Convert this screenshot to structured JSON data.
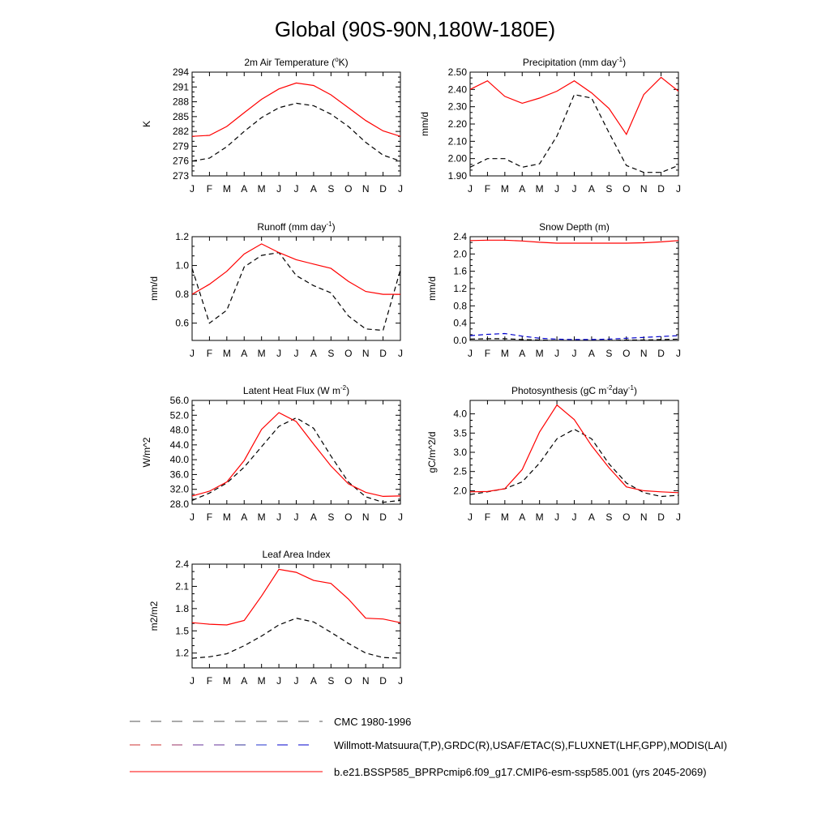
{
  "title": "Global (90S-90N,180W-180E)",
  "months": [
    "J",
    "F",
    "M",
    "A",
    "M",
    "J",
    "J",
    "A",
    "S",
    "O",
    "N",
    "D",
    "J"
  ],
  "colors": {
    "model": "#ff0000",
    "obs": "#000000",
    "obs_alt": "#0000cc"
  },
  "chart_data": [
    {
      "type": "line",
      "title": "2m Air Temperature (°K)",
      "title_parts": [
        "2m Air Temperature (",
        "o",
        "K)"
      ],
      "ylabel": "K",
      "ylim": [
        273,
        294
      ],
      "yticks": [
        "294",
        "291",
        "288",
        "285",
        "282",
        "279",
        "276",
        "273"
      ],
      "ytick_values": [
        294,
        291,
        288,
        285,
        282,
        279,
        276,
        273
      ],
      "series": [
        {
          "values": [
            281.0,
            281.2,
            283.0,
            285.8,
            288.5,
            290.6,
            291.8,
            291.3,
            289.4,
            286.8,
            284.2,
            282.1,
            281.0
          ]
        },
        {
          "values": [
            276.0,
            276.6,
            278.9,
            282.0,
            284.8,
            286.8,
            287.7,
            287.2,
            285.5,
            283.0,
            279.8,
            277.2,
            276.0
          ]
        }
      ]
    },
    {
      "type": "line",
      "title": "Precipitation (mm day-1)",
      "title_parts": [
        "Precipitation (mm day",
        "-1",
        ")"
      ],
      "ylabel": "mm/d",
      "ylim": [
        1.9,
        2.5
      ],
      "yticks": [
        "2.50",
        "2.40",
        "2.30",
        "2.20",
        "2.10",
        "2.00",
        "1.90"
      ],
      "ytick_values": [
        2.5,
        2.4,
        2.3,
        2.2,
        2.1,
        2.0,
        1.9
      ],
      "series": [
        {
          "values": [
            2.4,
            2.45,
            2.36,
            2.32,
            2.35,
            2.39,
            2.45,
            2.38,
            2.29,
            2.14,
            2.37,
            2.47,
            2.39
          ]
        },
        {
          "values": [
            1.95,
            2.0,
            2.0,
            1.95,
            1.97,
            2.13,
            2.37,
            2.35,
            2.15,
            1.96,
            1.92,
            1.92,
            1.96
          ]
        }
      ]
    },
    {
      "type": "line",
      "title": "Runoff (mm day-1)",
      "title_parts": [
        "Runoff (mm day",
        "-1",
        ")"
      ],
      "ylabel": "mm/d",
      "ylim": [
        0.48,
        1.2
      ],
      "yticks": [
        "1.2",
        "1.0",
        "0.8",
        "0.6"
      ],
      "ytick_values": [
        1.2,
        1.0,
        0.8,
        0.6
      ],
      "series": [
        {
          "values": [
            0.8,
            0.87,
            0.96,
            1.08,
            1.15,
            1.09,
            1.04,
            1.01,
            0.98,
            0.89,
            0.82,
            0.8,
            0.8
          ]
        },
        {
          "values": [
            0.98,
            0.6,
            0.69,
            0.99,
            1.07,
            1.09,
            0.93,
            0.86,
            0.81,
            0.65,
            0.56,
            0.55,
            0.97
          ]
        }
      ]
    },
    {
      "type": "line",
      "title": "Snow Depth (m)",
      "title_parts": [
        "Snow Depth (m)",
        "",
        ""
      ],
      "ylabel": "mm/d",
      "ylim": [
        0.0,
        2.4
      ],
      "yticks": [
        "2.4",
        "2.0",
        "1.6",
        "1.2",
        "0.8",
        "0.4",
        "0.0"
      ],
      "ytick_values": [
        2.4,
        2.0,
        1.6,
        1.2,
        0.8,
        0.4,
        0.0
      ],
      "series": [
        {
          "values": [
            2.31,
            2.32,
            2.32,
            2.3,
            2.27,
            2.25,
            2.25,
            2.25,
            2.25,
            2.25,
            2.26,
            2.28,
            2.31
          ]
        },
        {
          "values": [
            0.11,
            0.14,
            0.16,
            0.1,
            0.05,
            0.03,
            0.02,
            0.02,
            0.03,
            0.05,
            0.07,
            0.09,
            0.11
          ]
        },
        {
          "values": [
            0.03,
            0.04,
            0.04,
            0.02,
            0.01,
            0.0,
            0.0,
            0.0,
            0.0,
            0.01,
            0.01,
            0.02,
            0.03
          ]
        }
      ]
    },
    {
      "type": "line",
      "title": "Latent Heat Flux (W m-2)",
      "title_parts": [
        "Latent Heat Flux (W m",
        "-2",
        ")"
      ],
      "ylabel": "W/m^2",
      "ylim": [
        28.0,
        56.0
      ],
      "yticks": [
        "56.0",
        "52.0",
        "48.0",
        "44.0",
        "40.0",
        "36.0",
        "32.0",
        "28.0"
      ],
      "ytick_values": [
        56.0,
        52.0,
        48.0,
        44.0,
        40.0,
        36.0,
        32.0,
        28.0
      ],
      "series": [
        {
          "values": [
            30.2,
            31.5,
            34.0,
            39.8,
            48.2,
            52.7,
            50.3,
            44.2,
            38.3,
            33.5,
            31.2,
            30.1,
            30.2
          ]
        },
        {
          "values": [
            29.0,
            31.0,
            33.7,
            38.0,
            43.5,
            49.0,
            51.3,
            48.5,
            41.0,
            34.0,
            30.0,
            28.5,
            29.0
          ]
        }
      ]
    },
    {
      "type": "line",
      "title": "Photosynthesis (gC m-2day-1)",
      "title_parts": [
        "Photosynthesis (gC m",
        "-2",
        "day",
        "-1",
        ")"
      ],
      "ylabel": "gC/m^2/d",
      "ylim": [
        1.65,
        4.35
      ],
      "yticks": [
        "4.0",
        "3.5",
        "3.0",
        "2.5",
        "2.0"
      ],
      "ytick_values": [
        4.0,
        3.5,
        3.0,
        2.5,
        2.0
      ],
      "series": [
        {
          "values": [
            1.97,
            1.98,
            2.05,
            2.55,
            3.53,
            4.23,
            3.85,
            3.17,
            2.6,
            2.1,
            2.0,
            1.97,
            1.95
          ]
        },
        {
          "values": [
            1.9,
            1.97,
            2.05,
            2.23,
            2.72,
            3.35,
            3.6,
            3.35,
            2.7,
            2.2,
            1.95,
            1.85,
            1.88
          ]
        }
      ]
    },
    {
      "type": "line",
      "title": "Leaf Area Index",
      "title_parts": [
        "Leaf Area Index",
        "",
        ""
      ],
      "ylabel": "m2/m2",
      "ylim": [
        1.0,
        2.4
      ],
      "yticks": [
        "2.4",
        "2.1",
        "1.8",
        "1.5",
        "1.2"
      ],
      "ytick_values": [
        2.4,
        2.1,
        1.8,
        1.5,
        1.2
      ],
      "series": [
        {
          "values": [
            1.61,
            1.59,
            1.58,
            1.64,
            1.97,
            2.33,
            2.29,
            2.18,
            2.14,
            1.93,
            1.67,
            1.66,
            1.61
          ]
        },
        {
          "values": [
            1.13,
            1.15,
            1.19,
            1.3,
            1.43,
            1.58,
            1.67,
            1.62,
            1.48,
            1.33,
            1.2,
            1.14,
            1.13
          ]
        }
      ]
    }
  ],
  "legend": [
    {
      "label": "CMC 1980-1996"
    },
    {
      "label": "Willmott-Matsuura(T,P),GRDC(R),USAF/ETAC(S),FLUXNET(LHF,GPP),MODIS(LAI)"
    },
    {
      "label": "b.e21.BSSP585_BPRPcmip6.f09_g17.CMIP6-esm-ssp585.001 (yrs 2045-2069)"
    }
  ]
}
